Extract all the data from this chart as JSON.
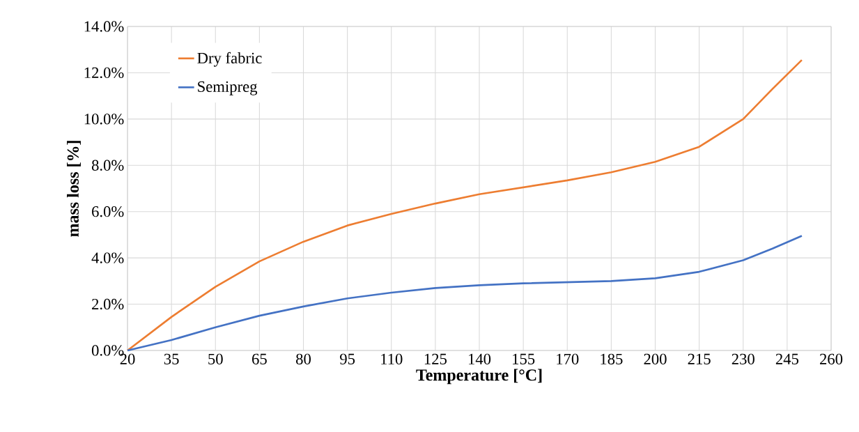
{
  "chart_data": {
    "type": "line",
    "xlabel": "Temperature [°C]",
    "ylabel": "mass loss [%]",
    "x": [
      20,
      35,
      50,
      65,
      80,
      95,
      110,
      125,
      140,
      155,
      170,
      185,
      200,
      215,
      230,
      240,
      250
    ],
    "series": [
      {
        "name": "Dry fabric",
        "color": "#ed7d31",
        "values": [
          0,
          1.45,
          2.75,
          3.85,
          4.7,
          5.4,
          5.9,
          6.35,
          6.75,
          7.05,
          7.35,
          7.7,
          8.15,
          8.8,
          10.0,
          11.3,
          12.55
        ]
      },
      {
        "name": "Semipreg",
        "color": "#4472c4",
        "values": [
          0,
          0.45,
          1.0,
          1.5,
          1.9,
          2.25,
          2.5,
          2.7,
          2.82,
          2.9,
          2.95,
          3.0,
          3.12,
          3.4,
          3.9,
          4.4,
          4.95
        ]
      }
    ],
    "xlim": [
      20,
      260
    ],
    "xticks": [
      20,
      35,
      50,
      65,
      80,
      95,
      110,
      125,
      140,
      155,
      170,
      185,
      200,
      215,
      230,
      245,
      260
    ],
    "ylim": [
      0,
      14
    ],
    "yticks": [
      {
        "value": 0,
        "label": "0.0%"
      },
      {
        "value": 2,
        "label": "2.0%"
      },
      {
        "value": 4,
        "label": "4.0%"
      },
      {
        "value": 6,
        "label": "6.0%"
      },
      {
        "value": 8,
        "label": "8.0%"
      },
      {
        "value": 10,
        "label": "10.0%"
      },
      {
        "value": 12,
        "label": "12.0%"
      },
      {
        "value": 14,
        "label": "14.0%"
      }
    ],
    "grid": true,
    "legend": "top left",
    "marker": "none",
    "line_style": "solid"
  }
}
